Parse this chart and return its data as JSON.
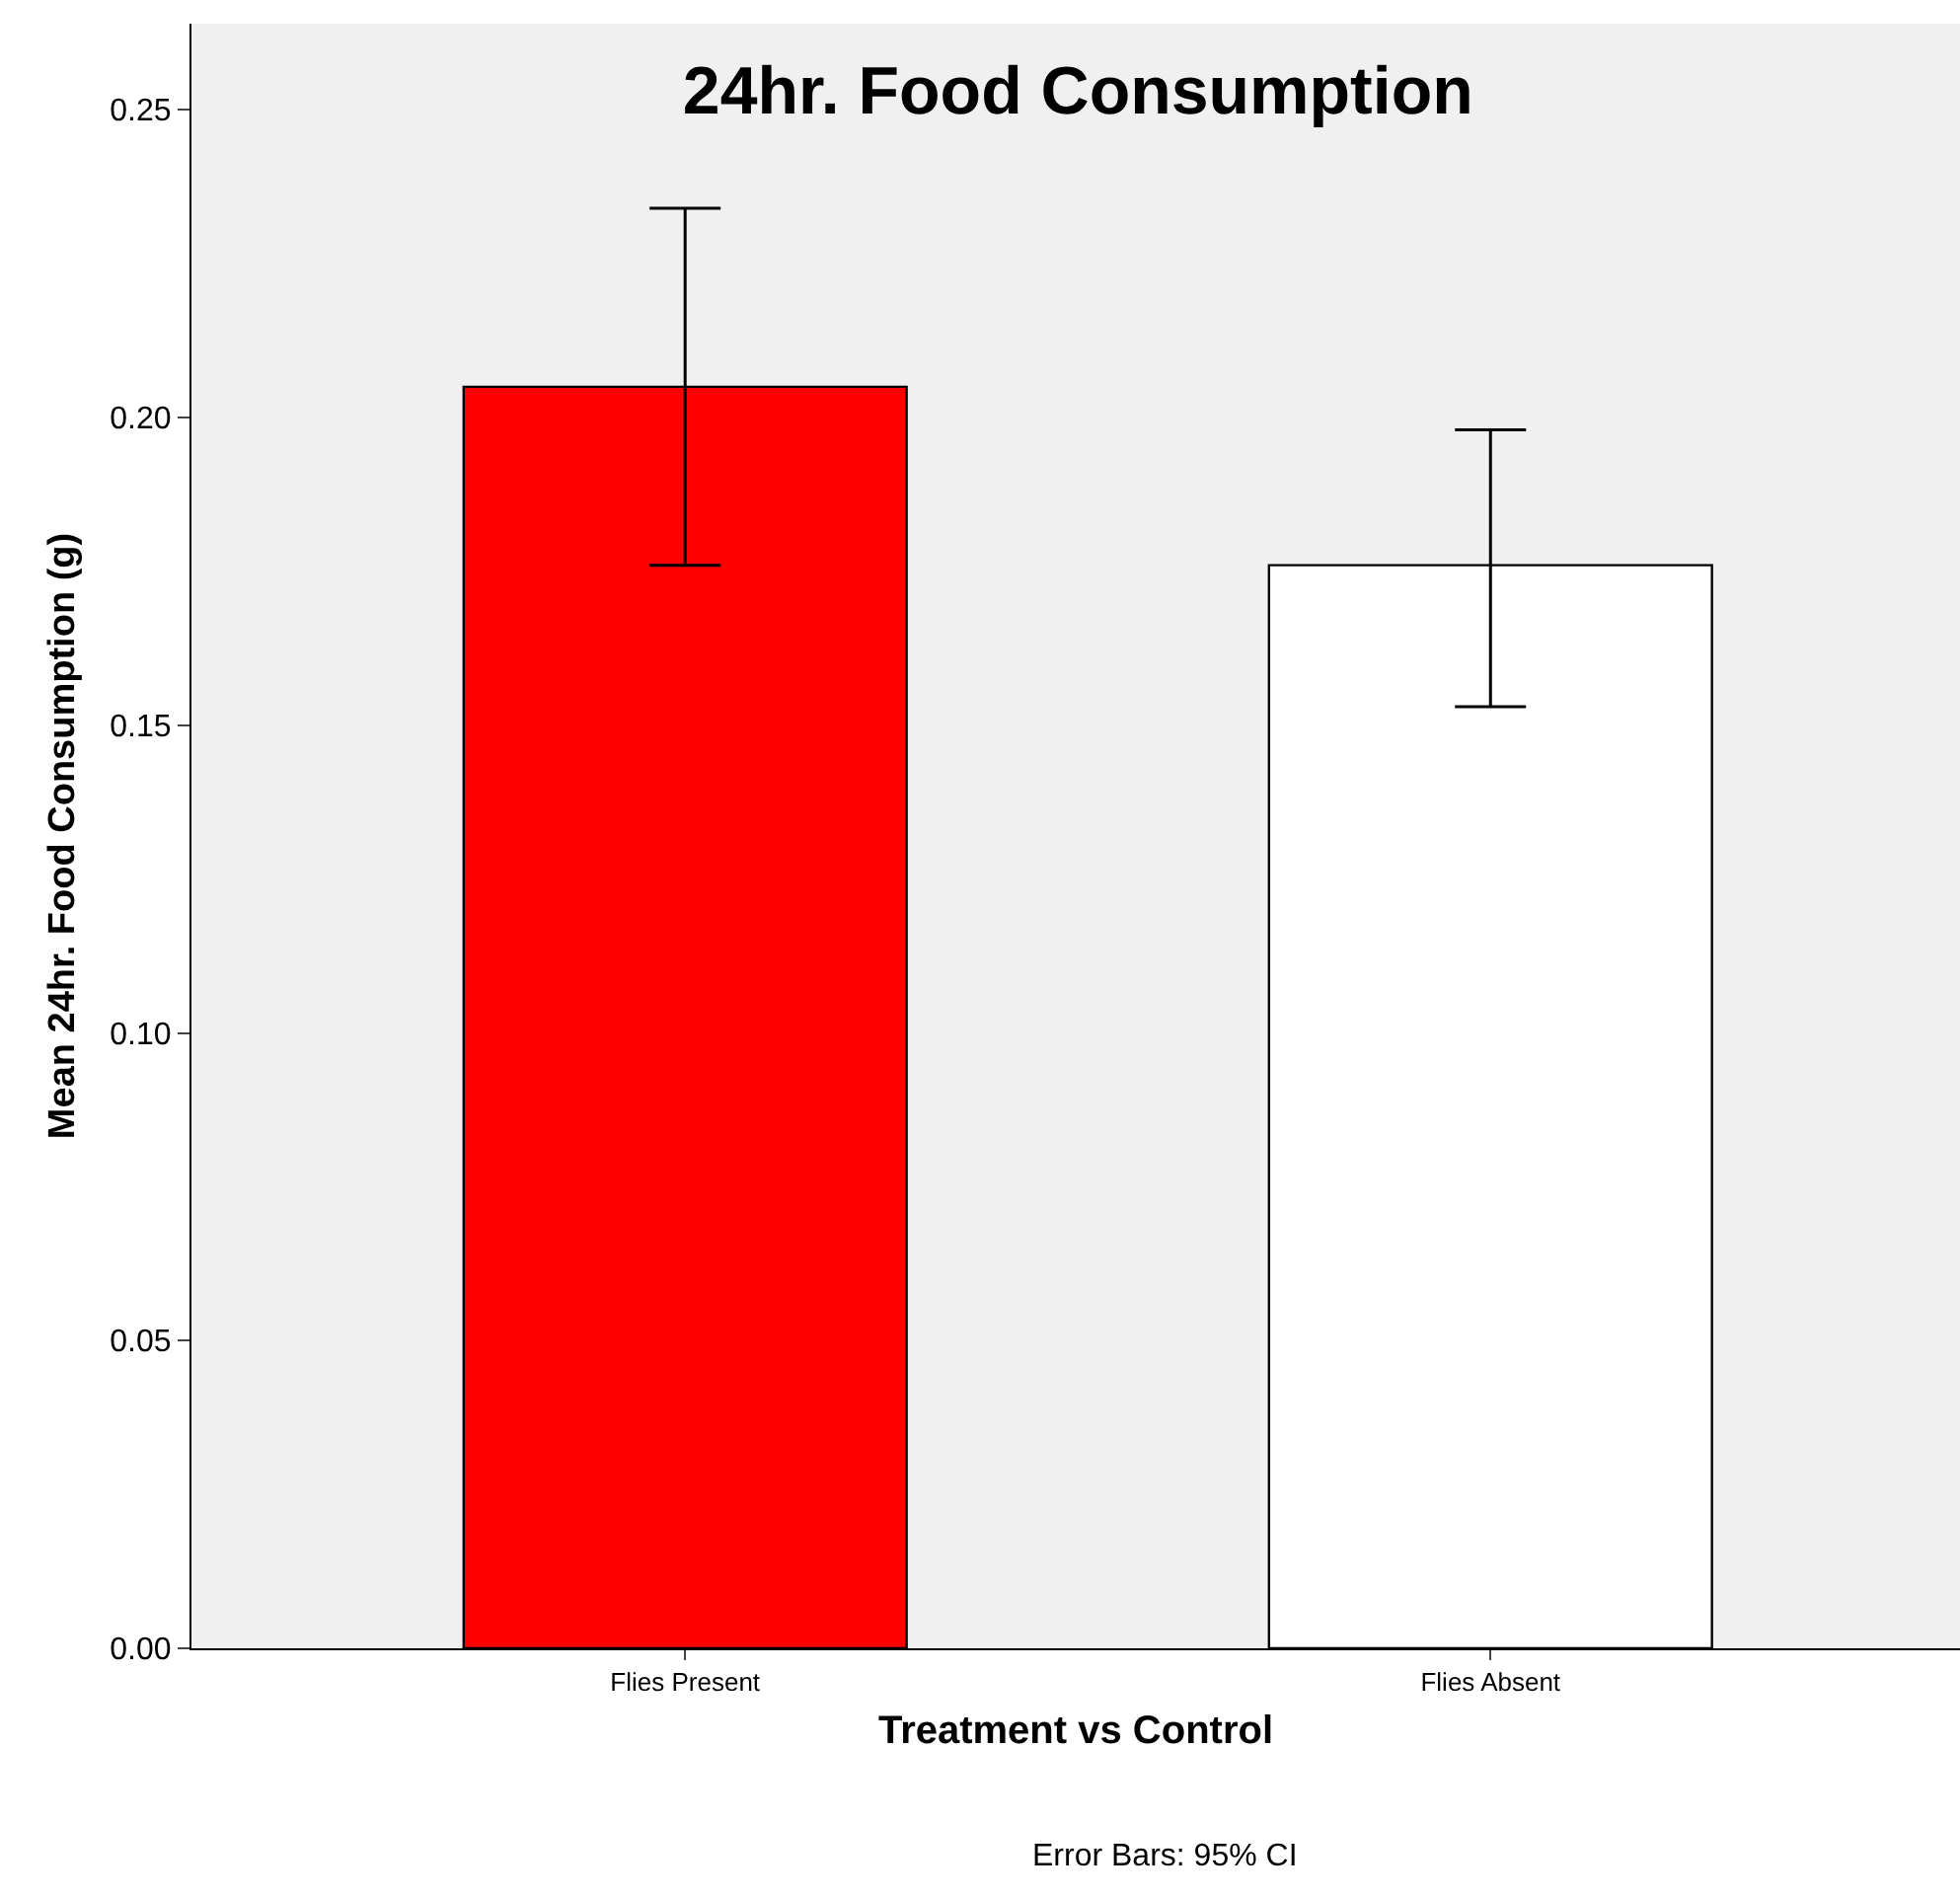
{
  "chart_data": {
    "type": "bar",
    "title": "24hr. Food Consumption",
    "xlabel": "Treatment vs Control",
    "ylabel": "Mean 24hr. Food Consumption (g)",
    "categories": [
      "Flies Present",
      "Flies Absent"
    ],
    "values": [
      0.205,
      0.176
    ],
    "colors": [
      "#ff0000",
      "#ffffff"
    ],
    "errors": [
      [
        0.176,
        0.234
      ],
      [
        0.153,
        0.198
      ]
    ],
    "ylim": [
      0,
      0.264
    ],
    "yticks": [
      {
        "value": 0,
        "label": "0.00"
      },
      {
        "value": 0.05,
        "label": "0.05"
      },
      {
        "value": 0.1,
        "label": "0.10"
      },
      {
        "value": 0.15,
        "label": "0.15"
      },
      {
        "value": 0.2,
        "label": "0.20"
      },
      {
        "value": 0.25,
        "label": "0.25"
      }
    ],
    "grid": false,
    "annotations": [
      "Error Bars: 95% CI"
    ]
  }
}
